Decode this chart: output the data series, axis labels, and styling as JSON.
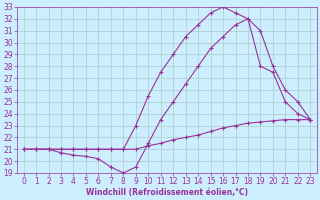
{
  "xlabel": "Windchill (Refroidissement éolien,°C)",
  "bg_color": "#cceeff",
  "grid_color": "#aacccc",
  "line_color": "#993399",
  "xlim": [
    -0.5,
    23.5
  ],
  "ylim": [
    19,
    33
  ],
  "xticks": [
    0,
    1,
    2,
    3,
    4,
    5,
    6,
    7,
    8,
    9,
    10,
    11,
    12,
    13,
    14,
    15,
    16,
    17,
    18,
    19,
    20,
    21,
    22,
    23
  ],
  "yticks": [
    19,
    20,
    21,
    22,
    23,
    24,
    25,
    26,
    27,
    28,
    29,
    30,
    31,
    32,
    33
  ],
  "line1_x": [
    0,
    1,
    2,
    3,
    4,
    5,
    6,
    7,
    8,
    9,
    10,
    11,
    12,
    13,
    14,
    15,
    16,
    17,
    18,
    19,
    20,
    21,
    22,
    23
  ],
  "line1_y": [
    21.0,
    21.0,
    21.0,
    21.0,
    21.0,
    21.0,
    21.0,
    21.0,
    21.0,
    21.0,
    21.3,
    21.5,
    21.8,
    22.0,
    22.2,
    22.5,
    22.8,
    23.0,
    23.2,
    23.3,
    23.4,
    23.5,
    23.5,
    23.5
  ],
  "line2_x": [
    0,
    1,
    2,
    3,
    4,
    5,
    6,
    7,
    8,
    9,
    10,
    11,
    12,
    13,
    14,
    15,
    16,
    17,
    18,
    19,
    20,
    21,
    22,
    23
  ],
  "line2_y": [
    21.0,
    21.0,
    21.0,
    20.7,
    20.5,
    20.4,
    20.2,
    19.5,
    19.0,
    19.5,
    21.5,
    23.5,
    25.0,
    26.5,
    28.0,
    29.5,
    30.5,
    31.5,
    32.0,
    28.0,
    27.5,
    25.0,
    24.0,
    23.5
  ],
  "line3_x": [
    0,
    1,
    2,
    3,
    4,
    5,
    6,
    7,
    8,
    9,
    10,
    11,
    12,
    13,
    14,
    15,
    16,
    17,
    18,
    19,
    20,
    21,
    22,
    23
  ],
  "line3_y": [
    21.0,
    21.0,
    21.0,
    21.0,
    21.0,
    21.0,
    21.0,
    21.0,
    21.0,
    23.0,
    25.5,
    27.5,
    29.0,
    30.5,
    31.5,
    32.5,
    33.0,
    32.5,
    32.0,
    31.0,
    28.0,
    26.0,
    25.0,
    23.5
  ],
  "marker": "+",
  "markersize": 3,
  "linewidth": 0.8,
  "tick_fontsize": 5.5,
  "xlabel_fontsize": 5.5
}
